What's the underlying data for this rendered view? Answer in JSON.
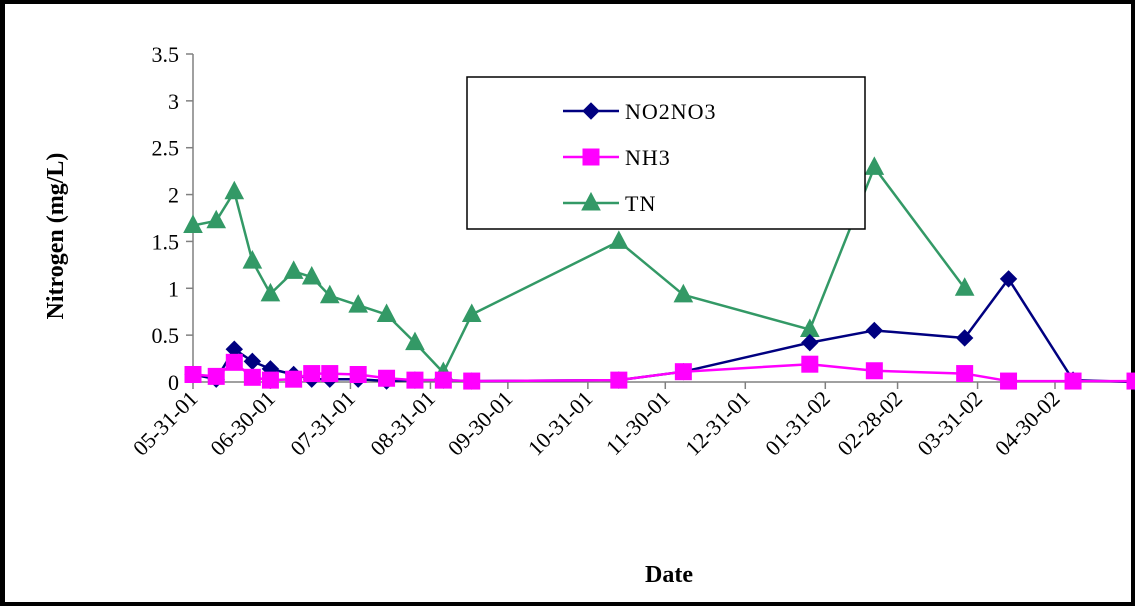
{
  "chart_data": {
    "type": "line",
    "title": "",
    "xlabel": "Date",
    "ylabel": "Nitrogen (mg/L)",
    "ylim": [
      0,
      3.5
    ],
    "yticks": [
      "0",
      "0.5",
      "1",
      "1.5",
      "2",
      "2.5",
      "3",
      "3.5"
    ],
    "xlim": [
      "2001-05-31",
      "2002-05-31"
    ],
    "xticks": [
      {
        "date": "2001-05-31",
        "label": "05-31-01"
      },
      {
        "date": "2001-06-30",
        "label": "06-30-01"
      },
      {
        "date": "2001-07-31",
        "label": "07-31-01"
      },
      {
        "date": "2001-08-31",
        "label": "08-31-01"
      },
      {
        "date": "2001-09-30",
        "label": "09-30-01"
      },
      {
        "date": "2001-10-31",
        "label": "10-31-01"
      },
      {
        "date": "2001-11-30",
        "label": "11-30-01"
      },
      {
        "date": "2001-12-31",
        "label": "12-31-01"
      },
      {
        "date": "2002-01-31",
        "label": "01-31-02"
      },
      {
        "date": "2002-02-28",
        "label": "02-28-02"
      },
      {
        "date": "2002-03-31",
        "label": "03-31-02"
      },
      {
        "date": "2002-04-30",
        "label": "04-30-02"
      }
    ],
    "grid": false,
    "legend_position": "top-center",
    "x": [
      "2001-05-31",
      "2001-06-09",
      "2001-06-16",
      "2001-06-23",
      "2001-06-30",
      "2001-07-09",
      "2001-07-16",
      "2001-07-23",
      "2001-08-03",
      "2001-08-14",
      "2001-08-25",
      "2001-09-05",
      "2001-09-16",
      "2001-11-12",
      "2001-12-07",
      "2002-01-25",
      "2002-02-19",
      "2002-03-26",
      "2002-04-12",
      "2002-05-07",
      "2002-05-31"
    ],
    "series": [
      {
        "name": "NO2NO3",
        "color": "#000080",
        "marker": "diamond",
        "values": [
          0.08,
          0.03,
          0.35,
          0.22,
          0.14,
          0.08,
          0.03,
          0.03,
          0.03,
          0.01,
          0.02,
          0.02,
          0.01,
          0.02,
          0.11,
          0.42,
          0.55,
          0.47,
          1.1,
          0.02,
          0.0
        ]
      },
      {
        "name": "NH3",
        "color": "#FF00FF",
        "marker": "square",
        "values": [
          0.08,
          0.06,
          0.21,
          0.05,
          0.02,
          0.03,
          0.09,
          0.09,
          0.08,
          0.04,
          0.02,
          0.02,
          0.01,
          0.02,
          0.11,
          0.19,
          0.12,
          0.09,
          0.01,
          0.01,
          0.01
        ]
      },
      {
        "name": "TN",
        "color": "#339966",
        "marker": "triangle",
        "values": [
          1.67,
          1.72,
          2.03,
          1.29,
          0.94,
          1.18,
          1.12,
          0.92,
          0.82,
          0.72,
          0.42,
          0.1,
          0.72,
          1.5,
          0.93,
          0.56,
          2.29,
          1.0,
          null,
          null,
          null
        ]
      }
    ]
  }
}
